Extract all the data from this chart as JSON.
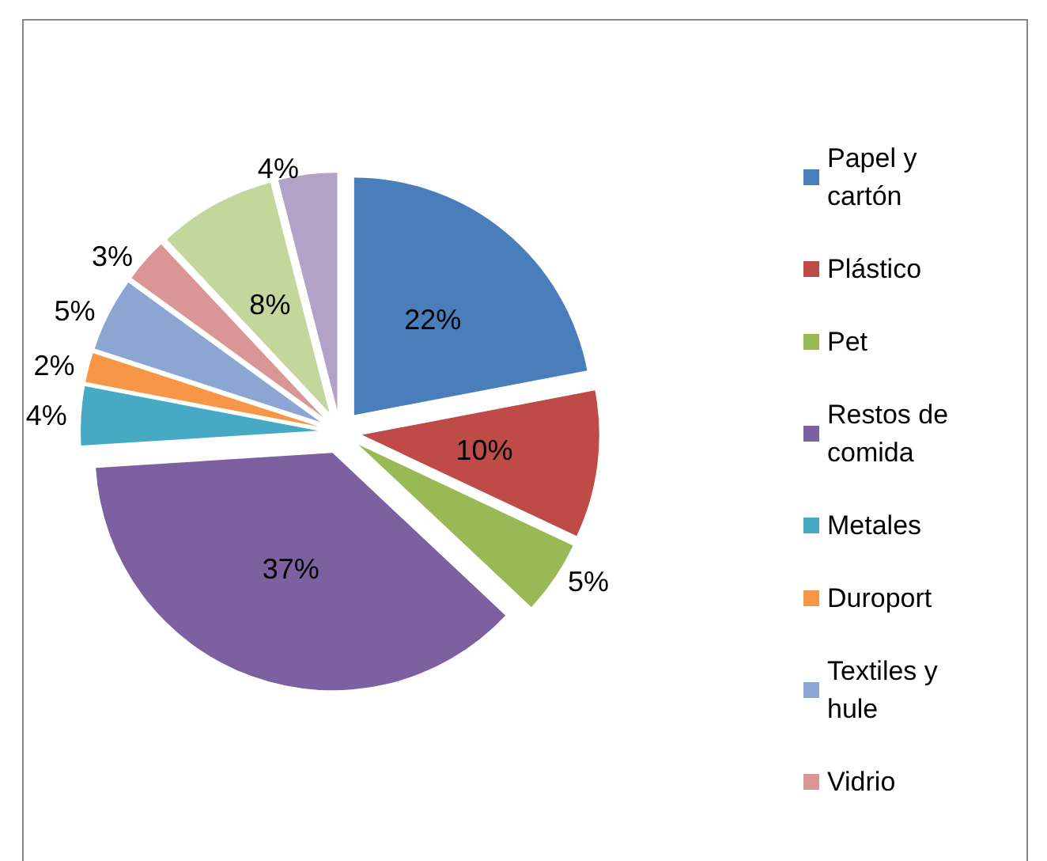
{
  "chart_data": {
    "type": "pie",
    "categories": [
      "Papel y cartón",
      "Plástico",
      "Pet",
      "Restos de comida",
      "Metales",
      "Duroport",
      "Textiles y hule",
      "Vidrio",
      null,
      null
    ],
    "values": [
      22,
      10,
      5,
      37,
      4,
      2,
      5,
      3,
      8,
      4
    ],
    "value_labels": [
      "22%",
      "10%",
      "5%",
      "37%",
      "4%",
      "2%",
      "5%",
      "3%",
      "8%",
      "4%"
    ],
    "colors": [
      "#4a7ebb",
      "#be4b48",
      "#98b954",
      "#7d60a0",
      "#46aac5",
      "#f79646",
      "#8ca6d4",
      "#d99694",
      "#c3d69b",
      "#b3a2c7"
    ],
    "legend": "right"
  }
}
